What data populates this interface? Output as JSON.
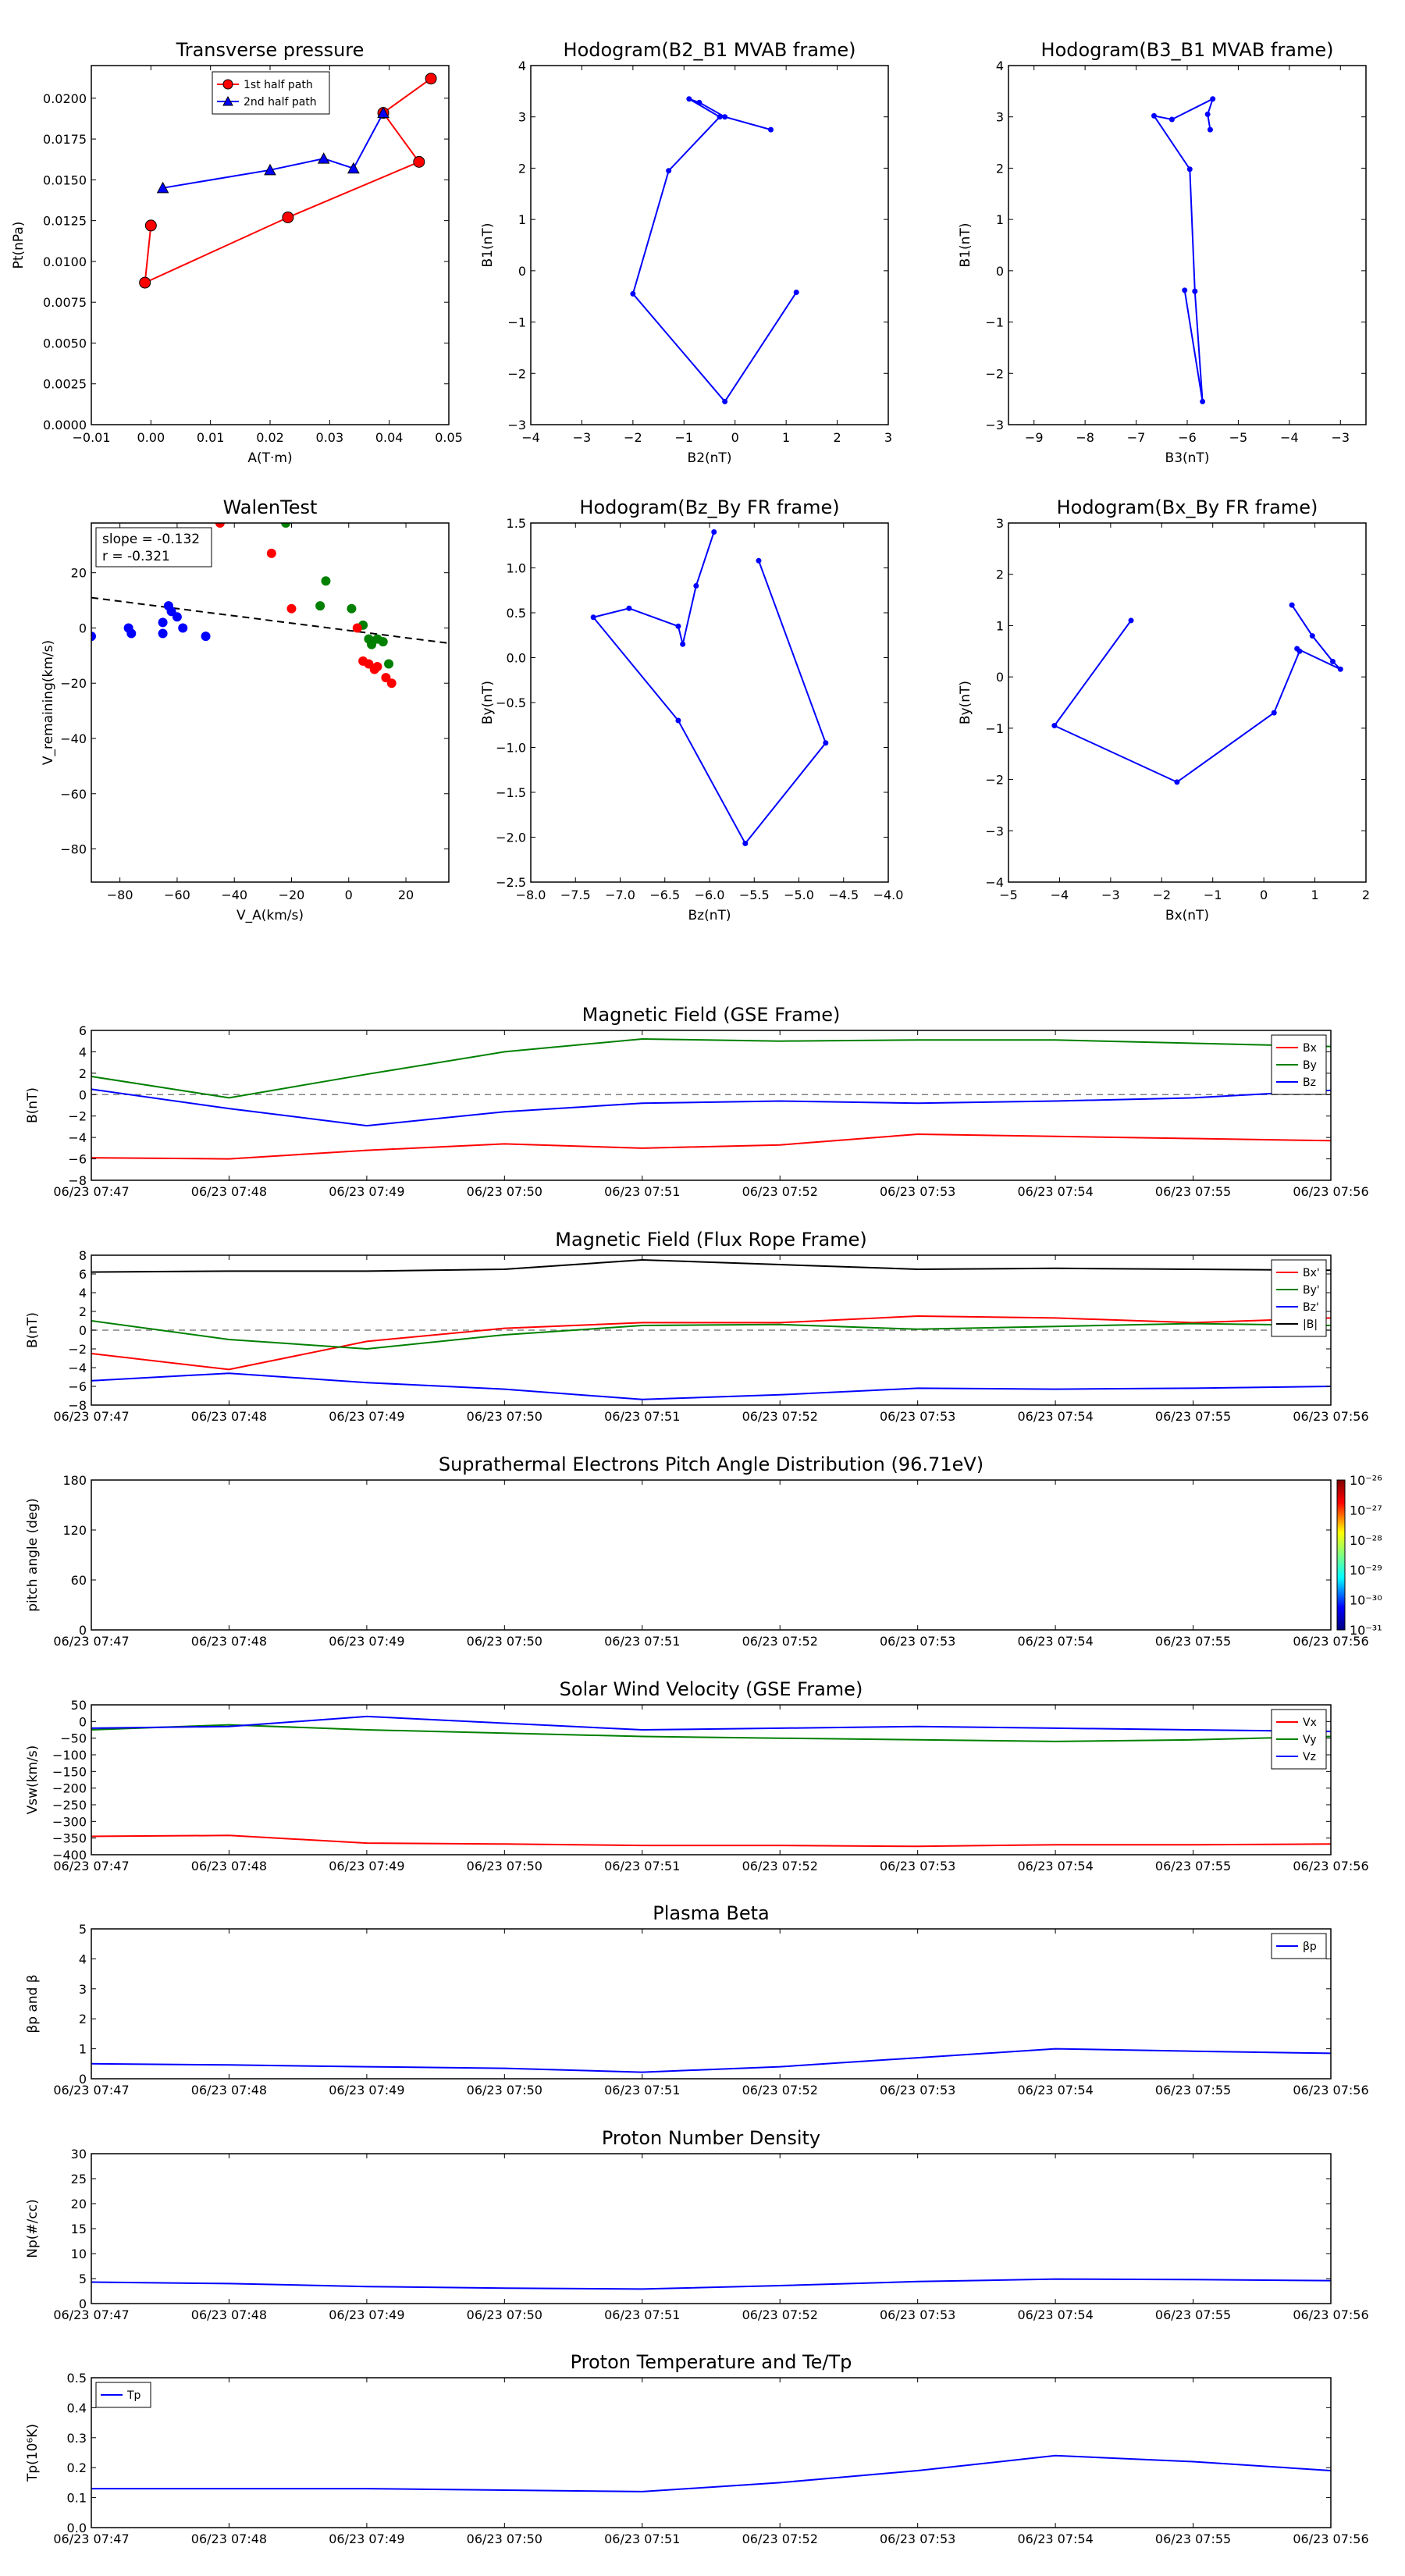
{
  "chart_data": [
    {
      "id": "pt",
      "type": "scatter",
      "title": "Transverse pressure",
      "xlabel": "A(T·m)",
      "ylabel": "Pt(nPa)",
      "xlim": [
        -0.01,
        0.05
      ],
      "ylim": [
        0,
        0.022
      ],
      "xticks": [
        -0.01,
        0.0,
        0.01,
        0.02,
        0.03,
        0.04,
        0.05
      ],
      "xticklabels": [
        "−0.01",
        "0.00",
        "0.01",
        "0.02",
        "0.03",
        "0.04",
        "0.05"
      ],
      "yticks": [
        0,
        0.0025,
        0.005,
        0.0075,
        0.01,
        0.0125,
        0.015,
        0.0175,
        0.02
      ],
      "yticklabels": [
        "0.0000",
        "0.0025",
        "0.0050",
        "0.0075",
        "0.0100",
        "0.0125",
        "0.0150",
        "0.0175",
        "0.0200"
      ],
      "legend": "top-center",
      "series": [
        {
          "name": "1st half path",
          "color": "#ff0000",
          "marker": "circle",
          "x": [
            0.0,
            -0.001,
            0.023,
            0.045,
            0.039,
            0.047
          ],
          "y": [
            0.0122,
            0.0087,
            0.0127,
            0.0161,
            0.0191,
            0.0212
          ]
        },
        {
          "name": "2nd half path",
          "color": "#0000ff",
          "marker": "triangle",
          "x": [
            0.039,
            0.034,
            0.029,
            0.02,
            0.002
          ],
          "y": [
            0.0191,
            0.0157,
            0.0163,
            0.0156,
            0.0145
          ]
        }
      ]
    },
    {
      "id": "h1",
      "type": "line",
      "title": "Hodogram(B2_B1 MVAB frame)",
      "xlabel": "B2(nT)",
      "ylabel": "B1(nT)",
      "xlim": [
        -4,
        3
      ],
      "ylim": [
        -3,
        4
      ],
      "xticks": [
        -4,
        -3,
        -2,
        -1,
        0,
        1,
        2,
        3
      ],
      "xticklabels": [
        "−4",
        "−3",
        "−2",
        "−1",
        "0",
        "1",
        "2",
        "3"
      ],
      "yticks": [
        -3,
        -2,
        -1,
        0,
        1,
        2,
        3,
        4
      ],
      "yticklabels": [
        "−3",
        "−2",
        "−1",
        "0",
        "1",
        "2",
        "3",
        "4"
      ],
      "series": [
        {
          "color": "#0000ff",
          "marker": "dot",
          "x": [
            0.7,
            -0.2,
            -0.7,
            -0.9,
            -0.3,
            -1.3,
            -2.0,
            -0.2,
            1.2
          ],
          "y": [
            2.75,
            3.0,
            3.28,
            3.35,
            3.0,
            1.95,
            -0.45,
            -2.55,
            -0.42
          ]
        }
      ]
    },
    {
      "id": "h2",
      "type": "line",
      "title": "Hodogram(B3_B1 MVAB frame)",
      "xlabel": "B3(nT)",
      "ylabel": "B1(nT)",
      "xlim": [
        -9.5,
        -2.5
      ],
      "ylim": [
        -3,
        4
      ],
      "xticks": [
        -9,
        -8,
        -7,
        -6,
        -5,
        -4,
        -3
      ],
      "xticklabels": [
        "−9",
        "−8",
        "−7",
        "−6",
        "−5",
        "−4",
        "−3"
      ],
      "yticks": [
        -3,
        -2,
        -1,
        0,
        1,
        2,
        3,
        4
      ],
      "yticklabels": [
        "−3",
        "−2",
        "−1",
        "0",
        "1",
        "2",
        "3",
        "4"
      ],
      "series": [
        {
          "color": "#0000ff",
          "marker": "dot",
          "x": [
            -5.55,
            -5.6,
            -5.5,
            -6.3,
            -6.65,
            -5.95,
            -5.85,
            -5.7,
            -6.05
          ],
          "y": [
            2.75,
            3.05,
            3.35,
            2.95,
            3.02,
            1.98,
            -0.4,
            -2.55,
            -0.38
          ]
        }
      ]
    },
    {
      "id": "walen",
      "type": "scatter",
      "title": "WalenTest",
      "xlabel": "V_A(km/s)",
      "ylabel": "V_remaining(km/s)",
      "xlim": [
        -90,
        35
      ],
      "ylim": [
        -92,
        38
      ],
      "xticks": [
        -80,
        -60,
        -40,
        -20,
        0,
        20
      ],
      "xticklabels": [
        "−80",
        "−60",
        "−40",
        "−20",
        "0",
        "20"
      ],
      "yticks": [
        -80,
        -60,
        -40,
        -20,
        0,
        20
      ],
      "yticklabels": [
        "−80",
        "−60",
        "−40",
        "−20",
        "0",
        "20"
      ],
      "annotation": [
        "slope = -0.132",
        "r = -0.321"
      ],
      "fit_line": {
        "slope": -0.132,
        "intercept": -0.9
      },
      "series": [
        {
          "color": "#0000ff",
          "x": [
            -90,
            -77,
            -76,
            -65,
            -63,
            -62,
            -60,
            -58,
            -65,
            -50
          ],
          "y": [
            -3,
            0,
            -2,
            -2,
            8,
            6,
            4,
            0,
            2,
            -3
          ]
        },
        {
          "color": "#008000",
          "x": [
            -22,
            -8,
            -10,
            1,
            5,
            7,
            8,
            10,
            12,
            14
          ],
          "y": [
            38,
            17,
            8,
            7,
            1,
            -4,
            -6,
            -4,
            -5,
            -13
          ]
        },
        {
          "color": "#ff0000",
          "x": [
            -45,
            -27,
            -20,
            3,
            5,
            7,
            9,
            10,
            13,
            15
          ],
          "y": [
            38,
            27,
            7,
            0,
            -12,
            -13,
            -15,
            -14,
            -18,
            -20
          ]
        }
      ]
    },
    {
      "id": "h3",
      "type": "line",
      "title": "Hodogram(Bz_By FR frame)",
      "xlabel": "Bz(nT)",
      "ylabel": "By(nT)",
      "xlim": [
        -8,
        -4
      ],
      "ylim": [
        -2.5,
        1.5
      ],
      "xticks": [
        -8,
        -7.5,
        -7,
        -6.5,
        -6,
        -5.5,
        -5,
        -4.5,
        -4
      ],
      "xticklabels": [
        "−8.0",
        "−7.5",
        "−7.0",
        "−6.5",
        "−6.0",
        "−5.5",
        "−5.0",
        "−4.5",
        "−4.0"
      ],
      "yticks": [
        -2.5,
        -2,
        -1.5,
        -1,
        -0.5,
        0,
        0.5,
        1,
        1.5
      ],
      "yticklabels": [
        "−2.5",
        "−2.0",
        "−1.5",
        "−1.0",
        "−0.5",
        "0.0",
        "0.5",
        "1.0",
        "1.5"
      ],
      "series": [
        {
          "color": "#0000ff",
          "marker": "dot",
          "x": [
            -5.95,
            -6.15,
            -6.3,
            -6.35,
            -6.9,
            -7.3,
            -6.35,
            -5.6,
            -4.7,
            -5.45
          ],
          "y": [
            1.4,
            0.8,
            0.15,
            0.35,
            0.55,
            0.45,
            -0.7,
            -2.07,
            -0.95,
            1.08
          ]
        }
      ]
    },
    {
      "id": "h4",
      "type": "line",
      "title": "Hodogram(Bx_By FR frame)",
      "xlabel": "Bx(nT)",
      "ylabel": "By(nT)",
      "xlim": [
        -5,
        2
      ],
      "ylim": [
        -4,
        3
      ],
      "xticks": [
        -5,
        -4,
        -3,
        -2,
        -1,
        0,
        1,
        2
      ],
      "xticklabels": [
        "−5",
        "−4",
        "−3",
        "−2",
        "−1",
        "0",
        "1",
        "2"
      ],
      "yticks": [
        -4,
        -3,
        -2,
        -1,
        0,
        1,
        2,
        3
      ],
      "yticklabels": [
        "−4",
        "−3",
        "−2",
        "−1",
        "0",
        "1",
        "2",
        "3"
      ],
      "series": [
        {
          "color": "#0000ff",
          "marker": "dot",
          "x": [
            -2.6,
            -4.1,
            -1.7,
            0.2,
            0.7,
            0.65,
            1.5,
            1.35,
            0.95,
            0.55
          ],
          "y": [
            1.1,
            -0.95,
            -2.05,
            -0.7,
            0.5,
            0.55,
            0.15,
            0.3,
            0.8,
            1.4
          ]
        }
      ]
    },
    {
      "id": "mag_gse",
      "type": "line",
      "title": "Magnetic Field (GSE Frame)",
      "ylabel": "B(nT)",
      "xlabel": "",
      "ylim": [
        -8,
        6
      ],
      "yticks": [
        -8,
        -6,
        -4,
        -2,
        0,
        2,
        4,
        6
      ],
      "yticklabels": [
        "−8",
        "−6",
        "−4",
        "−2",
        "0",
        "2",
        "4",
        "6"
      ],
      "categories": [
        "06/23 07:47",
        "06/23 07:48",
        "06/23 07:49",
        "06/23 07:50",
        "06/23 07:51",
        "06/23 07:52",
        "06/23 07:53",
        "06/23 07:54",
        "06/23 07:55",
        "06/23 07:56"
      ],
      "zero_line": true,
      "legend": "top-right",
      "series": [
        {
          "name": "Bx",
          "color": "#ff0000",
          "values": [
            -5.9,
            -6.0,
            -5.2,
            -4.6,
            -5.0,
            -4.7,
            -3.7,
            -3.9,
            -4.1,
            -4.3
          ]
        },
        {
          "name": "By",
          "color": "#008000",
          "values": [
            1.7,
            -0.3,
            1.9,
            4.0,
            5.2,
            5.0,
            5.1,
            5.1,
            4.8,
            4.5
          ]
        },
        {
          "name": "Bz",
          "color": "#0000ff",
          "values": [
            0.5,
            -1.3,
            -2.9,
            -1.6,
            -0.8,
            -0.6,
            -0.8,
            -0.6,
            -0.3,
            0.4
          ]
        }
      ]
    },
    {
      "id": "mag_fr",
      "type": "line",
      "title": "Magnetic Field (Flux Rope Frame)",
      "ylabel": "B(nT)",
      "xlabel": "",
      "ylim": [
        -8,
        8
      ],
      "yticks": [
        -8,
        -6,
        -4,
        -2,
        0,
        2,
        4,
        6,
        8
      ],
      "yticklabels": [
        "−8",
        "−6",
        "−4",
        "−2",
        "0",
        "2",
        "4",
        "6",
        "8"
      ],
      "categories": [
        "06/23 07:47",
        "06/23 07:48",
        "06/23 07:49",
        "06/23 07:50",
        "06/23 07:51",
        "06/23 07:52",
        "06/23 07:53",
        "06/23 07:54",
        "06/23 07:55",
        "06/23 07:56"
      ],
      "zero_line": true,
      "legend": "top-right",
      "series": [
        {
          "name": "Bx'",
          "color": "#ff0000",
          "values": [
            -2.5,
            -4.2,
            -1.2,
            0.2,
            0.8,
            0.8,
            1.5,
            1.3,
            0.8,
            1.3
          ]
        },
        {
          "name": "By'",
          "color": "#008000",
          "values": [
            1.0,
            -1.0,
            -2.0,
            -0.5,
            0.5,
            0.6,
            0.1,
            0.4,
            0.7,
            0.5
          ]
        },
        {
          "name": "Bz'",
          "color": "#0000ff",
          "values": [
            -5.4,
            -4.6,
            -5.6,
            -6.3,
            -7.4,
            -6.9,
            -6.2,
            -6.3,
            -6.2,
            -6.0
          ]
        },
        {
          "name": "|B|",
          "color": "#000000",
          "values": [
            6.2,
            6.3,
            6.3,
            6.5,
            7.5,
            7.0,
            6.5,
            6.6,
            6.5,
            6.4
          ]
        }
      ]
    },
    {
      "id": "pad",
      "type": "heatmap",
      "title": "Suprathermal Electrons Pitch Angle Distribution (96.71eV)",
      "ylabel": "pitch angle (deg)",
      "xlabel": "",
      "ylim": [
        0,
        180
      ],
      "yticks": [
        0,
        60,
        120,
        180
      ],
      "yticklabels": [
        "0",
        "60",
        "120",
        "180"
      ],
      "categories": [
        "06/23 07:47",
        "06/23 07:48",
        "06/23 07:49",
        "06/23 07:50",
        "06/23 07:51",
        "06/23 07:52",
        "06/23 07:53",
        "06/23 07:54",
        "06/23 07:55",
        "06/23 07:56"
      ],
      "colorbar_labels": [
        "10⁻²⁶",
        "10⁻²⁷",
        "10⁻²⁸",
        "10⁻²⁹",
        "10⁻³⁰",
        "10⁻³¹"
      ],
      "series": []
    },
    {
      "id": "vsw",
      "type": "line",
      "title": "Solar Wind Velocity (GSE Frame)",
      "ylabel": "Vsw(km/s)",
      "xlabel": "",
      "ylim": [
        -400,
        50
      ],
      "yticks": [
        -400,
        -350,
        -300,
        -250,
        -200,
        -150,
        -100,
        -50,
        0,
        50
      ],
      "yticklabels": [
        "−400",
        "−350",
        "−300",
        "−250",
        "−200",
        "−150",
        "−100",
        "−50",
        "0",
        "50"
      ],
      "categories": [
        "06/23 07:47",
        "06/23 07:48",
        "06/23 07:49",
        "06/23 07:50",
        "06/23 07:51",
        "06/23 07:52",
        "06/23 07:53",
        "06/23 07:54",
        "06/23 07:55",
        "06/23 07:56"
      ],
      "legend": "top-right",
      "series": [
        {
          "name": "Vx",
          "color": "#ff0000",
          "values": [
            -345,
            -342,
            -365,
            -368,
            -372,
            -372,
            -375,
            -370,
            -370,
            -368
          ]
        },
        {
          "name": "Vy",
          "color": "#008000",
          "values": [
            -25,
            -10,
            -25,
            -35,
            -45,
            -50,
            -55,
            -60,
            -55,
            -45
          ]
        },
        {
          "name": "Vz",
          "color": "#0000ff",
          "values": [
            -20,
            -15,
            15,
            -5,
            -25,
            -20,
            -15,
            -20,
            -25,
            -30
          ]
        }
      ]
    },
    {
      "id": "beta",
      "type": "line",
      "title": "Plasma Beta",
      "ylabel": "βp and β",
      "xlabel": "",
      "ylim": [
        0,
        5
      ],
      "yticks": [
        0,
        1,
        2,
        3,
        4,
        5
      ],
      "yticklabels": [
        "0",
        "1",
        "2",
        "3",
        "4",
        "5"
      ],
      "categories": [
        "06/23 07:47",
        "06/23 07:48",
        "06/23 07:49",
        "06/23 07:50",
        "06/23 07:51",
        "06/23 07:52",
        "06/23 07:53",
        "06/23 07:54",
        "06/23 07:55",
        "06/23 07:56"
      ],
      "legend": "top-right",
      "series": [
        {
          "name": "βp",
          "color": "#0000ff",
          "values": [
            0.5,
            0.46,
            0.4,
            0.35,
            0.22,
            0.4,
            0.7,
            1.0,
            0.92,
            0.85
          ]
        }
      ]
    },
    {
      "id": "np",
      "type": "line",
      "title": "Proton Number Density",
      "ylabel": "Np(#/cc)",
      "xlabel": "",
      "ylim": [
        0,
        30
      ],
      "yticks": [
        0,
        5,
        10,
        15,
        20,
        25,
        30
      ],
      "yticklabels": [
        "0",
        "5",
        "10",
        "15",
        "20",
        "25",
        "30"
      ],
      "categories": [
        "06/23 07:47",
        "06/23 07:48",
        "06/23 07:49",
        "06/23 07:50",
        "06/23 07:51",
        "06/23 07:52",
        "06/23 07:53",
        "06/23 07:54",
        "06/23 07:55",
        "06/23 07:56"
      ],
      "series": [
        {
          "color": "#0000ff",
          "values": [
            4.3,
            4.0,
            3.4,
            3.1,
            2.9,
            3.6,
            4.4,
            4.9,
            4.8,
            4.6
          ]
        }
      ]
    },
    {
      "id": "tp",
      "type": "line",
      "title": "Proton Temperature and Te/Tp",
      "ylabel": "Tp(10⁶K)",
      "xlabel": "",
      "ylim": [
        0,
        0.5
      ],
      "yticks": [
        0,
        0.1,
        0.2,
        0.3,
        0.4,
        0.5
      ],
      "yticklabels": [
        "0.0",
        "0.1",
        "0.2",
        "0.3",
        "0.4",
        "0.5"
      ],
      "categories": [
        "06/23 07:47",
        "06/23 07:48",
        "06/23 07:49",
        "06/23 07:50",
        "06/23 07:51",
        "06/23 07:52",
        "06/23 07:53",
        "06/23 07:54",
        "06/23 07:55",
        "06/23 07:56"
      ],
      "legend": "top-left",
      "series": [
        {
          "name": "Tp",
          "color": "#0000ff",
          "values": [
            0.13,
            0.13,
            0.13,
            0.125,
            0.12,
            0.15,
            0.19,
            0.24,
            0.22,
            0.19
          ]
        }
      ]
    }
  ]
}
